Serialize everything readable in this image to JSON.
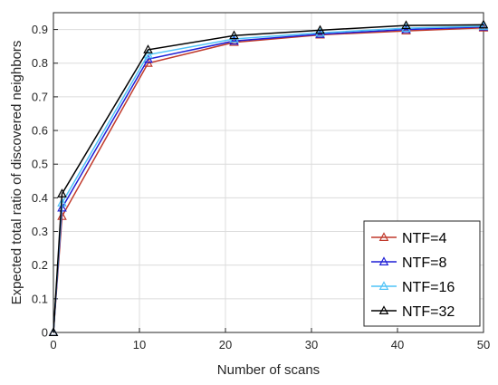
{
  "chart_data": {
    "type": "line",
    "xlabel": "Number of scans",
    "ylabel": "Expected total ratio of discovered neighbors",
    "xlim": [
      0,
      50
    ],
    "ylim": [
      0,
      0.95
    ],
    "xticks": [
      0,
      10,
      20,
      30,
      40,
      50
    ],
    "yticks": [
      0,
      0.1,
      0.2,
      0.3,
      0.4,
      0.5,
      0.6,
      0.7,
      0.8,
      0.9
    ],
    "grid": true,
    "legend_position": "bottom-right",
    "x": [
      0,
      1,
      11,
      21,
      31,
      41,
      50
    ],
    "series": [
      {
        "name": "NTF=4",
        "color": "#c0392b",
        "values": [
          0,
          0.345,
          0.8,
          0.862,
          0.884,
          0.896,
          0.905
        ]
      },
      {
        "name": "NTF=8",
        "color": "#1f1fd6",
        "values": [
          0,
          0.37,
          0.812,
          0.866,
          0.886,
          0.9,
          0.908
        ]
      },
      {
        "name": "NTF=16",
        "color": "#4fc3f7",
        "values": [
          0,
          0.385,
          0.825,
          0.872,
          0.89,
          0.904,
          0.91
        ]
      },
      {
        "name": "NTF=32",
        "color": "#000000",
        "values": [
          0,
          0.412,
          0.84,
          0.882,
          0.898,
          0.912,
          0.914
        ]
      }
    ]
  }
}
